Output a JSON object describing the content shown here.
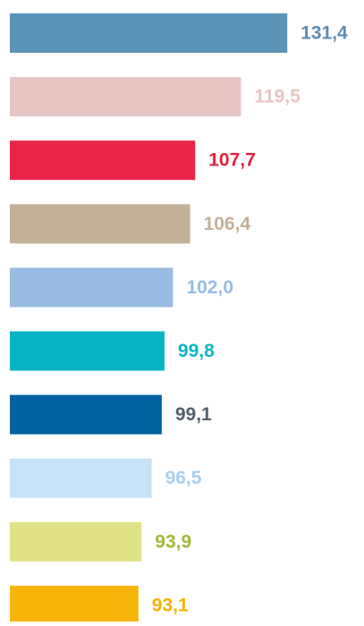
{
  "chart_data": {
    "type": "bar",
    "orientation": "horizontal",
    "values": [
      131.4,
      119.5,
      107.7,
      106.4,
      102.0,
      99.8,
      99.1,
      96.5,
      93.9,
      93.1
    ],
    "value_labels": [
      "131,4",
      "119,5",
      "107,7",
      "106,4",
      "102,0",
      "99,8",
      "99,1",
      "96,5",
      "93,9",
      "93,1"
    ],
    "colors": [
      "#5b94b8",
      "#e8c4c4",
      "#e8264a",
      "#c4b098",
      "#99bde2",
      "#06b4c6",
      "#0060a0",
      "#c8e2f7",
      "#e0e287",
      "#f7b50c"
    ],
    "label_colors": [
      "#5b8db5",
      "#e8c4c4",
      "#e0213f",
      "#c4b096",
      "#96bde3",
      "#0bb5c8",
      "#555f6b",
      "#a9d0ef",
      "#a5b83a",
      "#f5b200"
    ],
    "xlim": [
      60,
      150
    ]
  }
}
